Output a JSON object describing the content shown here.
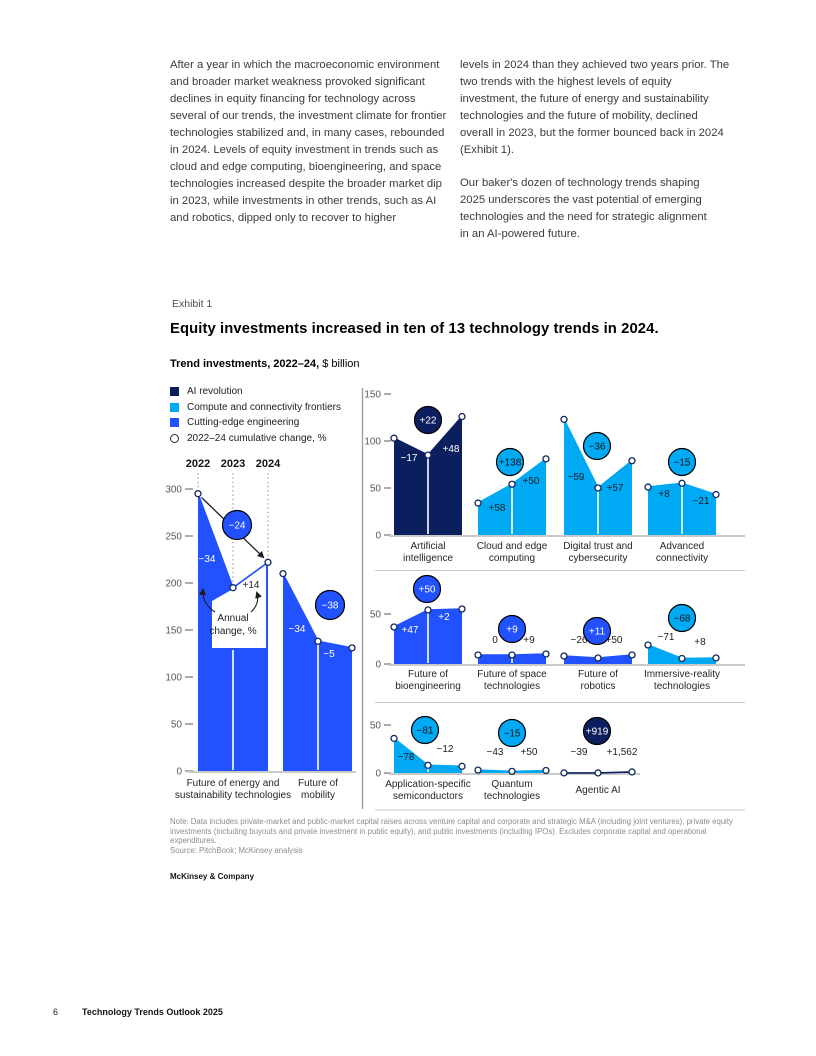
{
  "body": {
    "col1": "After a year in which the macroeconomic environment and broader market weakness provoked significant declines in equity financing for technology across several of our trends, the investment climate for frontier technologies stabilized and, in many cases, rebounded in 2024. Levels of equity investment in trends such as cloud and edge computing, bioengineering, and space technologies increased despite the broader market dip in 2023, while investments in other trends, such as AI and robotics, dipped only to recover to higher",
    "col2a": "levels in 2024 than they achieved two years prior. The two trends with the highest levels of equity investment, the future of energy and sustainability technologies and the future of mobility, declined overall in 2023, but the former bounced back in 2024 (Exhibit 1).",
    "col2b": "Our baker's dozen of technology trends shaping 2025 underscores the vast potential of emerging technologies and the need for strategic alignment in an AI-powered future."
  },
  "exhibit": {
    "label": "Exhibit 1",
    "title": "Equity investments increased in ten of 13 technology trends in 2024.",
    "subtitle_bold": "Trend investments, 2022–24,",
    "subtitle_rest": " $ billion"
  },
  "note": {
    "text": "Note: Data includes private-market and public-market capital raises across venture capital and corporate and strategic M&A (including joint ventures), private equity investments (including buyouts and private investment in public equity), and public investments (including IPOs). Excludes corporate capital and operational expenditures.",
    "source": "Source: PitchBook; McKinsey analysis"
  },
  "brand": "McKinsey & Company",
  "footer": {
    "page": "6",
    "title": "Technology Trends Outlook 2025"
  },
  "chart_data": {
    "type": "area",
    "title": "Trend investments, 2022–24, $ billion",
    "unit": "$ billion",
    "years": [
      "2022",
      "2023",
      "2024"
    ],
    "annual_change_label": [
      "Annual",
      "change, %"
    ],
    "legend": [
      {
        "label": "AI revolution",
        "color": "#0B1F5F",
        "marker": "square"
      },
      {
        "label": "Compute and connectivity frontiers",
        "color": "#00A9F4",
        "marker": "square"
      },
      {
        "label": "Cutting-edge engineering",
        "color": "#2251FF",
        "marker": "square"
      },
      {
        "label": "2022–24 cumulative change, %",
        "marker": "open-circle"
      }
    ],
    "left_panel": {
      "ylim": [
        0,
        300
      ],
      "ticks": [
        0,
        50,
        100,
        150,
        200,
        250,
        300
      ],
      "charts": [
        {
          "label": "Future of energy and sustainability technologies",
          "label_lines": [
            "Future of energy and",
            "sustainability technologies"
          ],
          "category": "Cutting-edge engineering",
          "color": "#2251FF",
          "values": [
            295,
            195,
            222
          ],
          "annual_change": [
            "−34",
            "+14"
          ],
          "cumulative": "−24"
        },
        {
          "label": "Future of mobility",
          "label_lines": [
            "Future of",
            "mobility"
          ],
          "category": "Cutting-edge engineering",
          "color": "#2251FF",
          "values": [
            210,
            138,
            131
          ],
          "annual_change": [
            "−34",
            "−5"
          ],
          "cumulative": "−38"
        }
      ]
    },
    "rows": [
      {
        "ylim": [
          0,
          150
        ],
        "ticks": [
          0,
          50,
          100,
          150
        ],
        "charts": [
          {
            "label": "Artificial intelligence",
            "label_lines": [
              "Artificial",
              "intelligence"
            ],
            "category": "AI revolution",
            "color": "#0B1F5F",
            "values": [
              103,
              85,
              126
            ],
            "annual_change": [
              "−17",
              "+48"
            ],
            "cumulative": "+22"
          },
          {
            "label": "Cloud and edge computing",
            "label_lines": [
              "Cloud and edge",
              "computing"
            ],
            "category": "Compute and connectivity frontiers",
            "color": "#00A9F4",
            "values": [
              34,
              54,
              81
            ],
            "annual_change": [
              "+58",
              "+50"
            ],
            "cumulative": "+138"
          },
          {
            "label": "Digital trust and cybersecurity",
            "label_lines": [
              "Digital trust and",
              "cybersecurity"
            ],
            "category": "Compute and connectivity frontiers",
            "color": "#00A9F4",
            "values": [
              123,
              50,
              79
            ],
            "annual_change": [
              "−59",
              "+57"
            ],
            "cumulative": "−36"
          },
          {
            "label": "Advanced connectivity",
            "label_lines": [
              "Advanced",
              "connectivity"
            ],
            "category": "Compute and connectivity frontiers",
            "color": "#00A9F4",
            "values": [
              51,
              55,
              43
            ],
            "annual_change": [
              "+8",
              "−21"
            ],
            "cumulative": "−15"
          }
        ]
      },
      {
        "ylim": [
          0,
          50
        ],
        "ticks": [
          0,
          50
        ],
        "charts": [
          {
            "label": "Future of bioengineering",
            "label_lines": [
              "Future of",
              "bioengineering"
            ],
            "category": "Cutting-edge engineering",
            "color": "#2251FF",
            "values": [
              37,
              54,
              55
            ],
            "annual_change": [
              "+47",
              "+2"
            ],
            "cumulative": "+50"
          },
          {
            "label": "Future of space technologies",
            "label_lines": [
              "Future of space",
              "technologies"
            ],
            "category": "Cutting-edge engineering",
            "color": "#2251FF",
            "values": [
              9,
              9,
              10
            ],
            "annual_change": [
              "0",
              "+9"
            ],
            "cumulative": "+9"
          },
          {
            "label": "Future of robotics",
            "label_lines": [
              "Future of",
              "robotics"
            ],
            "category": "Cutting-edge engineering",
            "color": "#2251FF",
            "values": [
              8,
              6,
              9
            ],
            "annual_change": [
              "−26",
              "+50"
            ],
            "cumulative": "+11"
          },
          {
            "label": "Immersive-reality technologies",
            "label_lines": [
              "Immersive-reality",
              "technologies"
            ],
            "category": "Compute and connectivity frontiers",
            "color": "#00A9F4",
            "values": [
              19,
              5.5,
              6
            ],
            "annual_change": [
              "−71",
              "+8"
            ],
            "cumulative": "−68"
          }
        ]
      },
      {
        "ylim": [
          0,
          50
        ],
        "ticks": [
          0,
          50
        ],
        "charts": [
          {
            "label": "Application-specific semiconductors",
            "label_lines": [
              "Application-specific",
              "semiconductors"
            ],
            "category": "Compute and connectivity frontiers",
            "color": "#00A9F4",
            "values": [
              36,
              8,
              7
            ],
            "annual_change": [
              "−78",
              "−12"
            ],
            "cumulative": "−81"
          },
          {
            "label": "Quantum technologies",
            "label_lines": [
              "Quantum",
              "technologies"
            ],
            "category": "Compute and connectivity frontiers",
            "color": "#00A9F4",
            "values": [
              3,
              1.7,
              2.6
            ],
            "annual_change": [
              "−43",
              "+50"
            ],
            "cumulative": "−15"
          },
          {
            "label": "Agentic AI",
            "label_lines": [
              "Agentic AI"
            ],
            "category": "AI revolution",
            "color": "#0B1F5F",
            "values": [
              0.11,
              0.07,
              1.1
            ],
            "annual_change": [
              "−39",
              "+1,562"
            ],
            "cumulative": "+919"
          }
        ]
      }
    ]
  }
}
